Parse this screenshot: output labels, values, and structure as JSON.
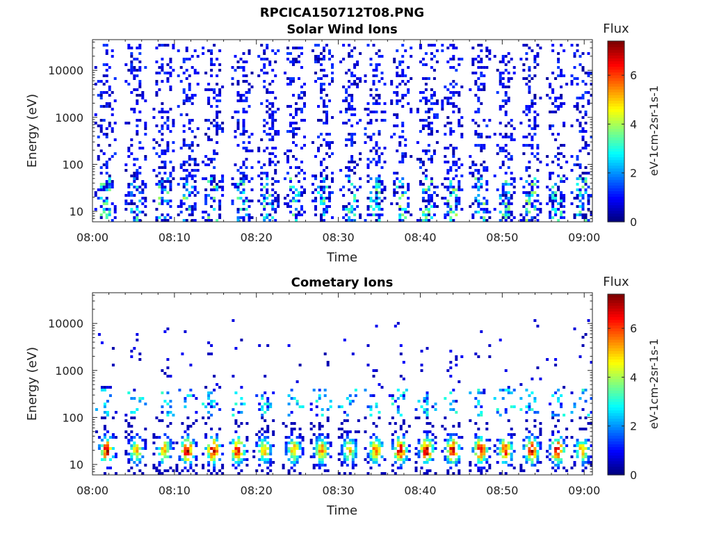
{
  "figure": {
    "title": "RPCICA150712T08.PNG",
    "colors": {
      "background": "#ffffff",
      "axis": "#222222"
    }
  },
  "chart_data": [
    {
      "type": "heatmap",
      "title": "Solar Wind Ions",
      "xlabel": "Time",
      "ylabel": "Energy (eV)",
      "x_ticks": [
        "08:00",
        "08:10",
        "08:20",
        "08:30",
        "08:40",
        "08:50",
        "09:00"
      ],
      "x_range_minutes": [
        0,
        61
      ],
      "y_ticks": [
        "10",
        "100",
        "1000",
        "10000"
      ],
      "y_scale": "log",
      "y_range_eV": [
        6,
        45000
      ],
      "colorbar": {
        "title": "Flux",
        "label": "eV-1cm-2sr-1s-1",
        "ticks": [
          "0",
          "2",
          "4",
          "6"
        ],
        "range": [
          0,
          7.4
        ],
        "colormap": "jet"
      },
      "bursts": [
        {
          "t": 1.5,
          "amp": 3.8
        },
        {
          "t": 5.2,
          "amp": 3.6
        },
        {
          "t": 8.6,
          "amp": 3.9
        },
        {
          "t": 11.6,
          "amp": 4.3
        },
        {
          "t": 14.6,
          "amp": 4.0
        },
        {
          "t": 18.2,
          "amp": 3.8
        },
        {
          "t": 21.4,
          "amp": 3.6
        },
        {
          "t": 24.6,
          "amp": 3.8
        },
        {
          "t": 28.0,
          "amp": 3.9
        },
        {
          "t": 31.4,
          "amp": 3.8
        },
        {
          "t": 34.4,
          "amp": 3.9
        },
        {
          "t": 37.6,
          "amp": 4.2
        },
        {
          "t": 40.8,
          "amp": 4.0
        },
        {
          "t": 43.8,
          "amp": 4.4
        },
        {
          "t": 47.2,
          "amp": 4.0
        },
        {
          "t": 50.2,
          "amp": 3.8
        },
        {
          "t": 53.4,
          "amp": 4.1
        },
        {
          "t": 56.6,
          "amp": 3.8
        },
        {
          "t": 59.6,
          "amp": 3.9
        }
      ]
    },
    {
      "type": "heatmap",
      "title": "Cometary Ions",
      "xlabel": "Time",
      "ylabel": "Energy (eV)",
      "x_ticks": [
        "08:00",
        "08:10",
        "08:20",
        "08:30",
        "08:40",
        "08:50",
        "09:00"
      ],
      "x_range_minutes": [
        0,
        61
      ],
      "y_ticks": [
        "10",
        "100",
        "1000",
        "10000"
      ],
      "y_scale": "log",
      "y_range_eV": [
        6,
        45000
      ],
      "colorbar": {
        "title": "Flux",
        "label": "eV-1cm-2sr-1s-1",
        "ticks": [
          "0",
          "2",
          "4",
          "6"
        ],
        "range": [
          0,
          7.4
        ],
        "colormap": "jet"
      },
      "bursts": [
        {
          "t": 1.6,
          "amp": 7.0
        },
        {
          "t": 5.2,
          "amp": 5.0
        },
        {
          "t": 8.6,
          "amp": 5.5
        },
        {
          "t": 11.4,
          "amp": 7.0
        },
        {
          "t": 14.6,
          "amp": 7.1
        },
        {
          "t": 17.6,
          "amp": 6.8
        },
        {
          "t": 20.8,
          "amp": 5.2
        },
        {
          "t": 24.4,
          "amp": 5.5
        },
        {
          "t": 27.8,
          "amp": 5.8
        },
        {
          "t": 31.2,
          "amp": 5.2
        },
        {
          "t": 34.4,
          "amp": 5.8
        },
        {
          "t": 37.4,
          "amp": 6.8
        },
        {
          "t": 40.6,
          "amp": 7.0
        },
        {
          "t": 43.8,
          "amp": 7.2
        },
        {
          "t": 47.2,
          "amp": 6.9
        },
        {
          "t": 50.2,
          "amp": 6.6
        },
        {
          "t": 53.4,
          "amp": 7.0
        },
        {
          "t": 56.6,
          "amp": 7.1
        },
        {
          "t": 59.6,
          "amp": 5.4
        }
      ]
    }
  ]
}
